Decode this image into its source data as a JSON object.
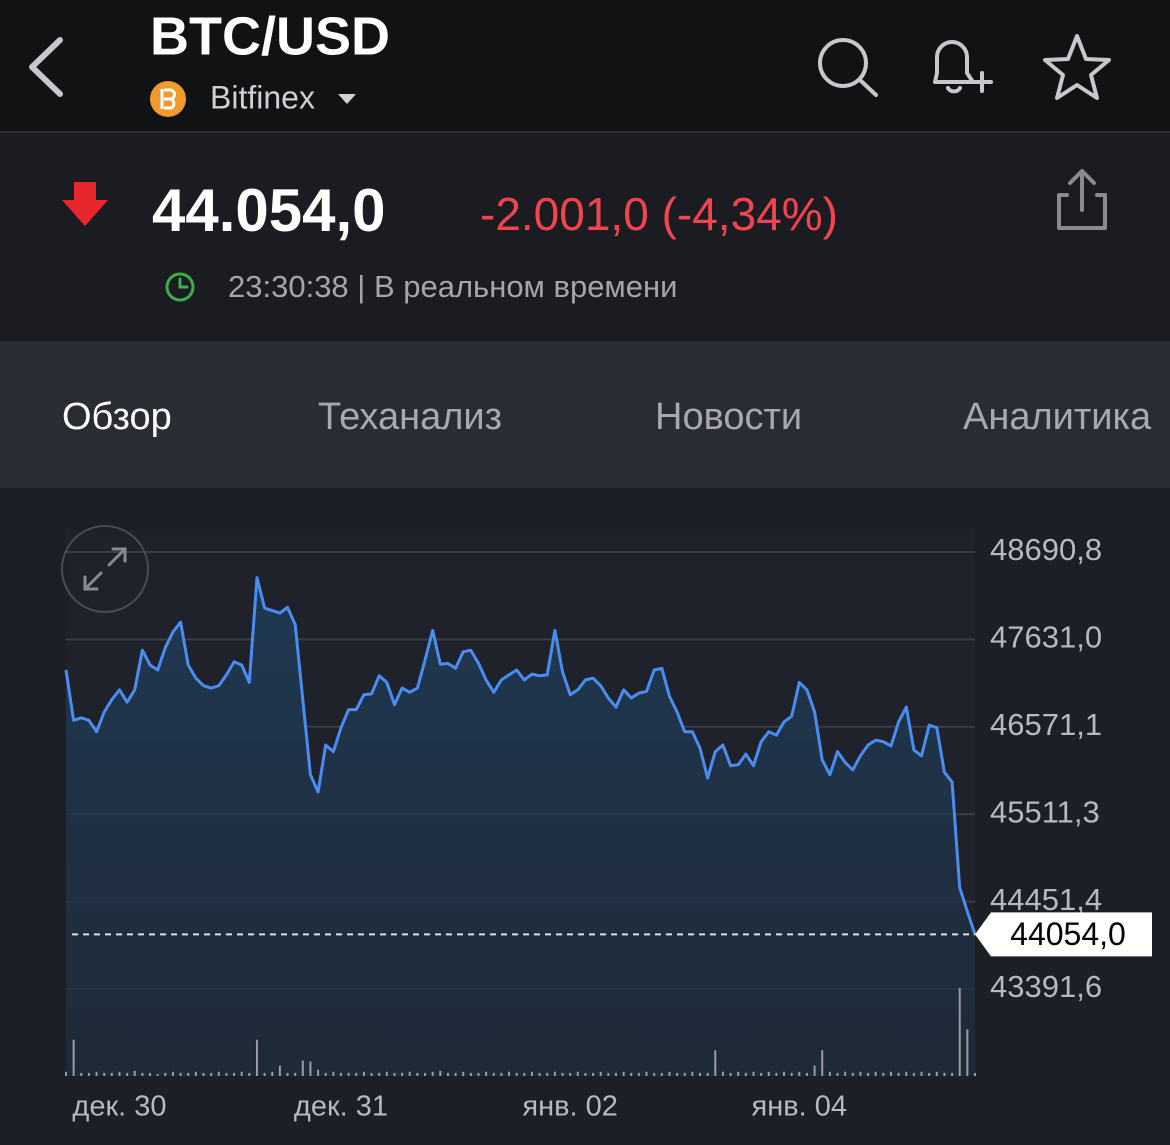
{
  "header": {
    "title": "BTC/USD",
    "exchange": "Bitfinex"
  },
  "quote": {
    "price": "44.054,0",
    "change": "-2.001,0 (-4,34%)",
    "time": "23:30:38 | В реальном времени"
  },
  "tabs": [
    "Обзор",
    "Теханализ",
    "Новости",
    "Аналитика"
  ],
  "chart_data": {
    "type": "line",
    "color": "#4a8df0",
    "grid": true,
    "categories": [
      null,
      null,
      null,
      null,
      null,
      null,
      null,
      "дек. 30",
      null,
      null,
      null,
      null,
      null,
      null,
      null,
      null,
      null,
      null,
      null,
      null,
      null,
      null,
      null,
      null,
      null,
      null,
      null,
      null,
      null,
      null,
      null,
      null,
      null,
      null,
      null,
      null,
      "дек. 31",
      null,
      null,
      null,
      null,
      null,
      null,
      null,
      null,
      null,
      null,
      null,
      null,
      null,
      null,
      null,
      null,
      null,
      null,
      null,
      null,
      null,
      null,
      null,
      null,
      null,
      null,
      null,
      null,
      null,
      "янв. 02",
      null,
      null,
      null,
      null,
      null,
      null,
      null,
      null,
      null,
      null,
      null,
      null,
      null,
      null,
      null,
      null,
      null,
      null,
      null,
      null,
      null,
      null,
      null,
      null,
      null,
      null,
      null,
      null,
      null,
      "янв. 04",
      null,
      null,
      null,
      null,
      null,
      null,
      null,
      null,
      null,
      null,
      null,
      null,
      null,
      null,
      null,
      null,
      null,
      null,
      null,
      null,
      null,
      null,
      null
    ],
    "values": [
      47260,
      46650,
      46680,
      46650,
      46510,
      46750,
      46900,
      47020,
      46870,
      47020,
      47500,
      47320,
      47260,
      47530,
      47720,
      47840,
      47320,
      47160,
      47070,
      47040,
      47070,
      47200,
      47360,
      47320,
      47110,
      48380,
      48010,
      47980,
      47950,
      48020,
      47810,
      46900,
      45990,
      45780,
      46350,
      46270,
      46560,
      46780,
      46780,
      46960,
      46970,
      47190,
      47110,
      46840,
      47040,
      46990,
      47040,
      47380,
      47740,
      47330,
      47340,
      47280,
      47480,
      47500,
      47340,
      47140,
      46990,
      47140,
      47200,
      47260,
      47140,
      47210,
      47190,
      47200,
      47740,
      47240,
      46960,
      47020,
      47140,
      47160,
      47070,
      46920,
      46810,
      47020,
      46920,
      46980,
      47000,
      47260,
      47280,
      46940,
      46750,
      46510,
      46510,
      46310,
      45950,
      46270,
      46350,
      46100,
      46110,
      46240,
      46100,
      46390,
      46510,
      46470,
      46630,
      46700,
      47110,
      47020,
      46750,
      46170,
      45990,
      46270,
      46140,
      46050,
      46220,
      46350,
      46410,
      46390,
      46340,
      46630,
      46810,
      46290,
      46220,
      46590,
      46560,
      46020,
      45900,
      44620,
      44330,
      44054.0
    ],
    "volume": [
      4,
      35,
      3,
      3,
      4,
      3,
      3,
      4,
      3,
      5,
      3,
      3,
      2,
      3,
      4,
      3,
      3,
      4,
      3,
      3,
      4,
      3,
      3,
      4,
      3,
      35,
      3,
      4,
      10,
      3,
      3,
      15,
      14,
      6,
      3,
      4,
      3,
      3,
      3,
      4,
      3,
      3,
      4,
      3,
      3,
      4,
      3,
      3,
      4,
      5,
      3,
      3,
      4,
      3,
      3,
      4,
      3,
      3,
      4,
      3,
      3,
      4,
      3,
      3,
      4,
      3,
      3,
      4,
      3,
      3,
      4,
      3,
      3,
      4,
      3,
      3,
      4,
      3,
      3,
      4,
      3,
      3,
      4,
      3,
      3,
      25,
      4,
      3,
      4,
      3,
      4,
      3,
      4,
      3,
      4,
      3,
      4,
      3,
      10,
      25,
      4,
      3,
      4,
      3,
      4,
      3,
      4,
      3,
      4,
      3,
      4,
      3,
      4,
      3,
      4,
      3,
      3,
      85,
      45,
      3
    ],
    "ylim": [
      43391.6,
      48690.8
    ],
    "yticks": [
      {
        "value": 48690.8,
        "label": "48690,8"
      },
      {
        "value": 47631.0,
        "label": "47631,0"
      },
      {
        "value": 46571.1,
        "label": "46571,1"
      },
      {
        "value": 45511.3,
        "label": "45511,3"
      },
      {
        "value": 44451.4,
        "label": "44451,4"
      },
      {
        "value": 43391.6,
        "label": "43391,6"
      }
    ],
    "last_price": {
      "value": 44054.0,
      "label": "44054,0"
    }
  }
}
